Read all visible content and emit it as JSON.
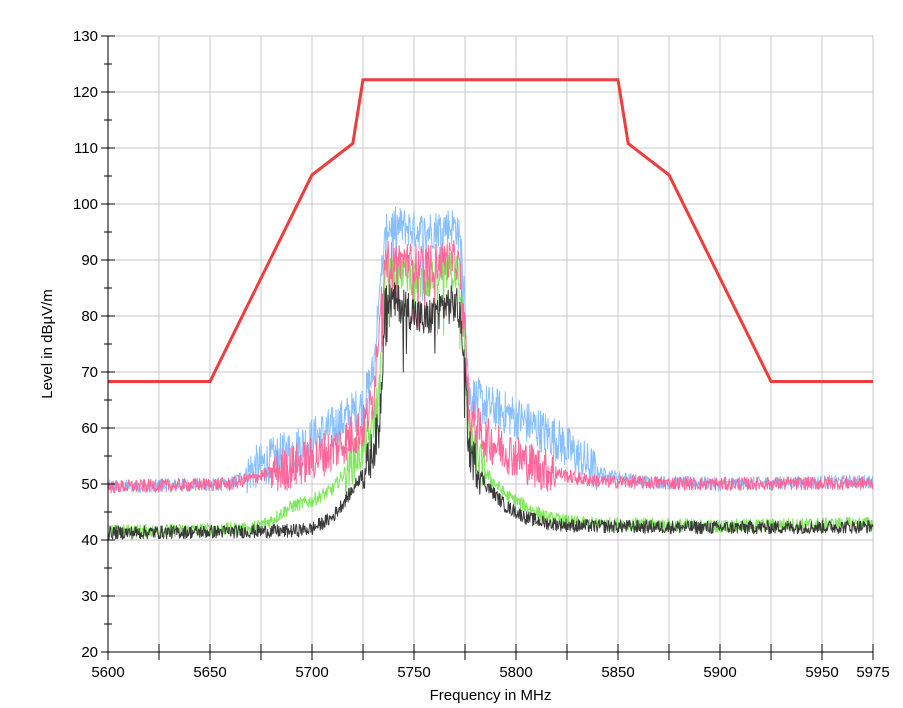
{
  "chart_data": {
    "type": "line",
    "title": "",
    "xlabel": "Frequency in MHz",
    "ylabel": "Level in dBµV/m",
    "xlim": [
      5600,
      5975
    ],
    "ylim": [
      20,
      130
    ],
    "x_ticks": [
      5600,
      5650,
      5700,
      5750,
      5800,
      5850,
      5900,
      5950,
      5975
    ],
    "x_tick_labels": [
      "5600",
      "5650",
      "5700",
      "5750",
      "5800",
      "5850",
      "5900",
      "5950",
      "5975"
    ],
    "y_ticks": [
      20,
      30,
      40,
      50,
      60,
      70,
      80,
      90,
      100,
      110,
      120,
      130
    ],
    "y_tick_labels": [
      "20",
      "30",
      "40",
      "50",
      "60",
      "70",
      "80",
      "90",
      "100",
      "110",
      "120",
      "130"
    ],
    "grid": true,
    "legend": "none",
    "series": [
      {
        "color": "#f03c3c",
        "style": "limit-line",
        "x": [
          5600,
          5650,
          5700,
          5720,
          5725,
          5850,
          5855,
          5875,
          5925,
          5975
        ],
        "y": [
          68.3,
          68.3,
          105.2,
          110.8,
          122.2,
          122.2,
          110.8,
          105.2,
          68.3,
          68.3
        ]
      },
      {
        "color": "#88c0ff",
        "style": "noisy-trace",
        "x": [
          5600,
          5660,
          5670,
          5690,
          5710,
          5725,
          5730,
          5734,
          5737,
          5745,
          5755,
          5765,
          5771,
          5774,
          5777,
          5785,
          5800,
          5810,
          5820,
          5830,
          5840,
          5860,
          5900,
          5975
        ],
        "y": [
          49.5,
          50,
          52.5,
          56,
          60,
          64,
          70,
          88,
          96,
          96,
          95,
          96,
          96,
          90,
          66,
          64,
          62,
          60,
          58,
          55,
          52,
          50.5,
          50,
          50.5
        ]
      },
      {
        "color": "#7ee85a",
        "style": "noisy-trace",
        "x": [
          5600,
          5670,
          5680,
          5690,
          5700,
          5710,
          5720,
          5728,
          5733,
          5736,
          5745,
          5755,
          5765,
          5771,
          5774,
          5777,
          5785,
          5795,
          5805,
          5815,
          5830,
          5900,
          5975
        ],
        "y": [
          41.5,
          42,
          43.5,
          46,
          47,
          49,
          54,
          58,
          66,
          88,
          88,
          86,
          88,
          88,
          80,
          58,
          52,
          48,
          46,
          44,
          43,
          42.5,
          43
        ]
      },
      {
        "color": "#ff6699",
        "style": "noisy-trace",
        "x": [
          5600,
          5660,
          5670,
          5690,
          5710,
          5725,
          5730,
          5734,
          5737,
          5745,
          5755,
          5765,
          5771,
          5774,
          5777,
          5785,
          5800,
          5810,
          5820,
          5830,
          5840,
          5860,
          5900,
          5975
        ],
        "y": [
          49.5,
          50,
          51,
          53,
          56,
          60,
          65,
          84,
          90,
          90,
          89,
          90,
          90,
          85,
          62,
          58,
          55,
          53,
          52,
          51,
          50.5,
          50.3,
          50,
          50.2
        ]
      },
      {
        "color": "#3a3a3a",
        "style": "noisy-trace",
        "x": [
          5600,
          5690,
          5700,
          5710,
          5720,
          5728,
          5733,
          5736,
          5745,
          5755,
          5765,
          5771,
          5774,
          5777,
          5785,
          5795,
          5805,
          5815,
          5830,
          5900,
          5975
        ],
        "y": [
          41.3,
          41.6,
          42,
          44,
          49,
          54,
          60,
          83,
          82,
          79,
          82,
          82,
          76,
          56,
          50,
          46,
          44,
          43,
          42.5,
          42.2,
          42.4
        ]
      }
    ]
  }
}
